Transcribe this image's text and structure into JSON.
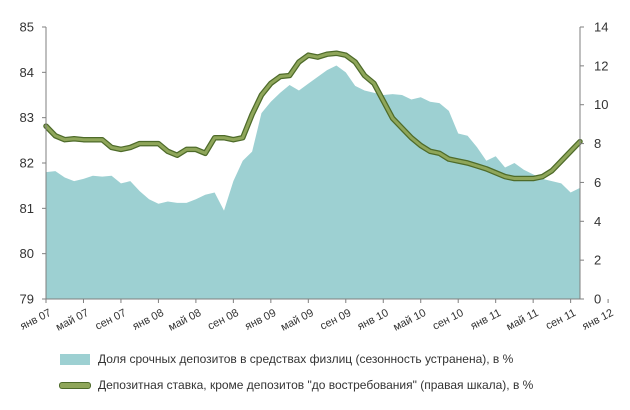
{
  "chart_data": {
    "type": "area",
    "title": "",
    "colors": {
      "area": "#9dd0d2",
      "line": "#8fa65a",
      "line_outline": "#4e6b2a"
    },
    "x_tick_labels": [
      "янв 07",
      "май 07",
      "сен 07",
      "янв 08",
      "май 08",
      "сен 08",
      "янв 09",
      "май 09",
      "сен 09",
      "янв 10",
      "май 10",
      "сен 10",
      "янв 11",
      "май 11",
      "сен 11",
      "янв 12"
    ],
    "y_left": {
      "min": 79,
      "max": 85,
      "ticks": [
        "79",
        "80",
        "81",
        "82",
        "83",
        "84",
        "85"
      ]
    },
    "y_right": {
      "min": 0,
      "max": 14,
      "ticks": [
        "0",
        "2",
        "4",
        "6",
        "8",
        "10",
        "12",
        "14"
      ]
    },
    "grid": false,
    "legend_position": "bottom",
    "series": [
      {
        "name": "Доля срочных депозитов в средствах физлиц (сезонность устранена), в %",
        "axis": "left",
        "kind": "area",
        "values": [
          81.8,
          81.82,
          81.68,
          81.6,
          81.65,
          81.72,
          81.7,
          81.72,
          81.55,
          81.6,
          81.38,
          81.2,
          81.1,
          81.15,
          81.12,
          81.12,
          81.2,
          81.3,
          81.35,
          80.95,
          81.6,
          82.05,
          82.25,
          83.1,
          83.35,
          83.55,
          83.72,
          83.6,
          83.75,
          83.9,
          84.05,
          84.15,
          84.0,
          83.7,
          83.6,
          83.55,
          83.5,
          83.52,
          83.5,
          83.4,
          83.45,
          83.35,
          83.32,
          83.15,
          82.65,
          82.6,
          82.35,
          82.05,
          82.15,
          81.9,
          82.0,
          81.85,
          81.75,
          81.65,
          81.6,
          81.55,
          81.35,
          81.45
        ]
      },
      {
        "name": "Депозитная ставка, кроме депозитов \"до востребования\" (правая шкала), в %",
        "axis": "right",
        "kind": "line",
        "values": [
          8.9,
          8.4,
          8.2,
          8.25,
          8.2,
          8.2,
          8.2,
          7.8,
          7.7,
          7.8,
          8.0,
          8.0,
          8.0,
          7.6,
          7.4,
          7.7,
          7.7,
          7.5,
          8.3,
          8.3,
          8.2,
          8.3,
          9.5,
          10.5,
          11.1,
          11.45,
          11.5,
          12.2,
          12.55,
          12.45,
          12.6,
          12.65,
          12.55,
          12.2,
          11.5,
          11.1,
          10.2,
          9.3,
          8.8,
          8.3,
          7.9,
          7.6,
          7.5,
          7.2,
          7.1,
          7.0,
          6.85,
          6.7,
          6.5,
          6.3,
          6.2,
          6.2,
          6.2,
          6.3,
          6.6,
          7.1,
          7.6,
          8.1
        ]
      }
    ]
  }
}
